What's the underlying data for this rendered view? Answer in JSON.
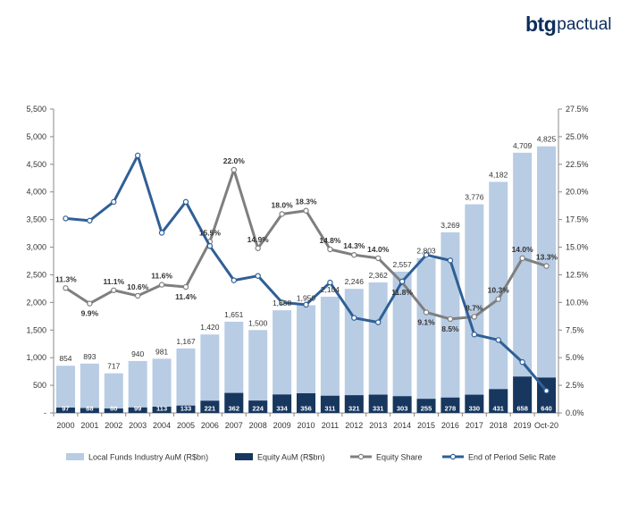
{
  "logo": {
    "mark": "btg",
    "word": "pactual"
  },
  "chart_data": {
    "type": "bar",
    "categories": [
      "2000",
      "2001",
      "2002",
      "2003",
      "2004",
      "2005",
      "2006",
      "2007",
      "2008",
      "2009",
      "2010",
      "2011",
      "2012",
      "2013",
      "2014",
      "2015",
      "2016",
      "2017",
      "2018",
      "2019",
      "Oct-20"
    ],
    "y_left": {
      "min": 0,
      "max": 5500,
      "ticks": [
        "-",
        "500",
        "1,000",
        "1,500",
        "2,000",
        "2,500",
        "3,000",
        "3,500",
        "4,000",
        "4,500",
        "5,000",
        "5,500"
      ]
    },
    "y_right": {
      "min": 0,
      "max": 27.5,
      "ticks": [
        "0.0%",
        "2.5%",
        "5.0%",
        "7.5%",
        "10.0%",
        "12.5%",
        "15.0%",
        "17.5%",
        "20.0%",
        "22.5%",
        "25.0%",
        "27.5%"
      ]
    },
    "series": [
      {
        "name": "Local Funds Industry AuM (R$bn)",
        "type": "bar",
        "axis": "left",
        "color": "#b8cce4",
        "values": [
          854,
          893,
          717,
          940,
          981,
          1167,
          1420,
          1651,
          1500,
          1858,
          1950,
          2104,
          2246,
          2362,
          2557,
          2803,
          3269,
          3776,
          4182,
          4709,
          4825
        ],
        "labels": [
          "854",
          "893",
          "717",
          "940",
          "981",
          "1,167",
          "1,420",
          "1,651",
          "1,500",
          "1,858",
          "1,950",
          "2,104",
          "2,246",
          "2,362",
          "2,557",
          "2,803",
          "3,269",
          "3,776",
          "4,182",
          "4,709",
          "4,825"
        ]
      },
      {
        "name": "Equity AuM (R$bn)",
        "type": "bar",
        "axis": "left",
        "color": "#17375e",
        "values": [
          97,
          88,
          80,
          99,
          113,
          133,
          221,
          362,
          224,
          334,
          356,
          311,
          321,
          331,
          303,
          255,
          278,
          330,
          431,
          658,
          640
        ],
        "labels": [
          "97",
          "88",
          "80",
          "99",
          "113",
          "133",
          "221",
          "362",
          "224",
          "334",
          "356",
          "311",
          "321",
          "331",
          "303",
          "255",
          "278",
          "330",
          "431",
          "658",
          "640"
        ]
      },
      {
        "name": "Equity Share",
        "type": "line",
        "axis": "right",
        "color": "#7f7f7f",
        "values": [
          11.3,
          9.9,
          11.1,
          10.6,
          11.6,
          11.4,
          15.5,
          22.0,
          14.9,
          18.0,
          18.3,
          14.8,
          14.3,
          14.0,
          11.8,
          9.1,
          8.5,
          8.7,
          10.3,
          14.0,
          13.3
        ],
        "labels": [
          "11.3%",
          "9.9%",
          "11.1%",
          "10.6%",
          "11.6%",
          "11.4%",
          "15.5%",
          "22.0%",
          "14.9%",
          "18.0%",
          "18.3%",
          "14.8%",
          "14.3%",
          "14.0%",
          "11.8%",
          "9.1%",
          "8.5%",
          "8.7%",
          "10.3%",
          "14.0%",
          "13.3%"
        ]
      },
      {
        "name": "End of Period Selic Rate",
        "type": "line",
        "axis": "right",
        "color": "#2f5f96",
        "values": [
          17.6,
          17.4,
          19.1,
          23.3,
          16.3,
          19.1,
          15.1,
          12.0,
          12.4,
          10.0,
          9.8,
          11.8,
          8.6,
          8.2,
          11.9,
          14.3,
          13.8,
          7.1,
          6.6,
          4.6,
          2.0
        ]
      }
    ],
    "legend_position": "bottom"
  }
}
